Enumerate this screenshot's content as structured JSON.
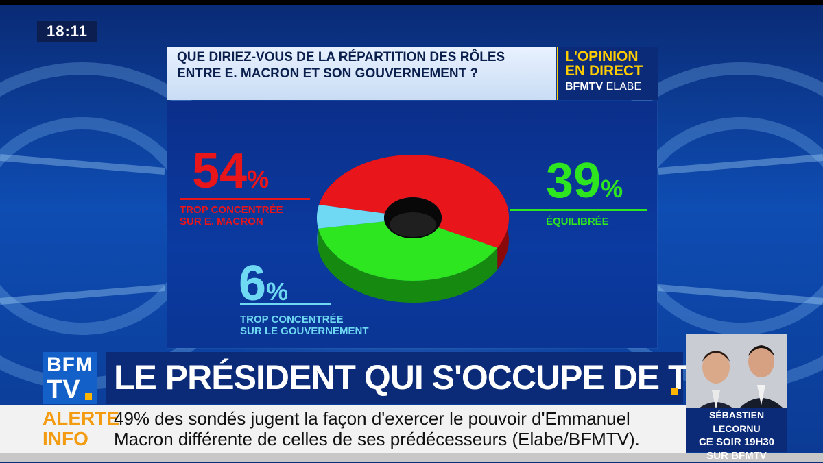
{
  "clock": "18:11",
  "question": {
    "line1": "QUE DIRIEZ-VOUS DE LA RÉPARTITION DES RÔLES",
    "line2": "ENTRE E. MACRON ET SON GOUVERNEMENT ?"
  },
  "opinion_logo": {
    "line1": "L'OPINION",
    "line2": "EN DIRECT",
    "brand": "BFMTV",
    "partner": "ELABE"
  },
  "chart_data": {
    "type": "pie",
    "style": "3d-donut",
    "categories": [
      "TROP CONCENTRÉE SUR E. MACRON",
      "ÉQUILIBRÉE",
      "TROP CONCENTRÉE SUR LE GOUVERNEMENT"
    ],
    "values": [
      54,
      39,
      6
    ],
    "value_labels": [
      "54",
      "39",
      "6"
    ],
    "unit": "%",
    "label_lines": [
      [
        "TROP CONCENTRÉE",
        "SUR E. MACRON"
      ],
      [
        "ÉQUILIBRÉE"
      ],
      [
        "TROP CONCENTRÉE",
        "SUR LE GOUVERNEMENT"
      ]
    ],
    "colors": [
      "#e8161b",
      "#2ee61f",
      "#6fd8f2"
    ],
    "side_colors": [
      "#8a0a0c",
      "#168a10",
      "#2a8aa6"
    ]
  },
  "channel_logo": {
    "line1": "BFM",
    "line2": "TV"
  },
  "headline": "LE PRÉSIDENT QUI S'OCCUPE DE TOUT",
  "alert": {
    "label_line1": "ALERTE",
    "label_line2": "INFO",
    "text_line1": "49% des sondés jugent la façon d'exercer le pouvoir d'Emmanuel",
    "text_line2": "Macron différente de celles de ses prédécesseurs (Elabe/BFMTV)."
  },
  "promo": {
    "name": "SÉBASTIEN LECORNU",
    "time": "CE SOIR 19H30",
    "channel": "SUR BFMTV"
  },
  "colors": {
    "accent": "#ffb400",
    "macron": "#e8161b",
    "equilibree": "#2ee61f",
    "gouvernement": "#6fd8f2"
  }
}
